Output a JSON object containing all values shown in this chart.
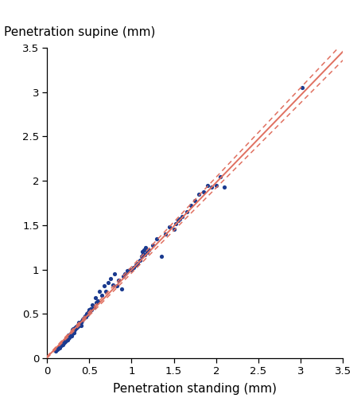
{
  "title": "",
  "xlabel": "Penetration standing (mm)",
  "ylabel": "Penetration supine (mm)",
  "xlim": [
    0,
    3.5
  ],
  "ylim": [
    0,
    3.5
  ],
  "xticks": [
    0,
    0.5,
    1.0,
    1.5,
    2.0,
    2.5,
    3.0,
    3.5
  ],
  "yticks": [
    0,
    0.5,
    1.0,
    1.5,
    2.0,
    2.5,
    3.0,
    3.5
  ],
  "dot_color": "#1a3a8f",
  "line_color": "#e07060",
  "ci_color": "#e07060",
  "regression_slope": 0.985,
  "regression_intercept": 0.01,
  "ci_slope_upper": 1.01,
  "ci_intercept_upper": 0.02,
  "ci_slope_lower": 0.96,
  "ci_intercept_lower": 0.0,
  "scatter_x": [
    0.1,
    0.12,
    0.13,
    0.14,
    0.15,
    0.15,
    0.16,
    0.17,
    0.17,
    0.18,
    0.19,
    0.19,
    0.2,
    0.2,
    0.21,
    0.21,
    0.22,
    0.22,
    0.23,
    0.23,
    0.24,
    0.24,
    0.25,
    0.25,
    0.25,
    0.26,
    0.26,
    0.27,
    0.27,
    0.28,
    0.28,
    0.29,
    0.29,
    0.3,
    0.3,
    0.3,
    0.31,
    0.31,
    0.32,
    0.32,
    0.33,
    0.33,
    0.34,
    0.35,
    0.35,
    0.36,
    0.37,
    0.37,
    0.38,
    0.38,
    0.39,
    0.4,
    0.4,
    0.41,
    0.42,
    0.43,
    0.44,
    0.45,
    0.46,
    0.47,
    0.48,
    0.49,
    0.5,
    0.51,
    0.52,
    0.53,
    0.54,
    0.55,
    0.57,
    0.58,
    0.6,
    0.62,
    0.65,
    0.68,
    0.7,
    0.72,
    0.75,
    0.78,
    0.8,
    0.83,
    0.85,
    0.88,
    0.9,
    0.92,
    0.95,
    0.98,
    1.0,
    1.02,
    1.05,
    1.07,
    1.1,
    1.12,
    1.13,
    1.14,
    1.15,
    1.16,
    1.17,
    1.18,
    1.2,
    1.25,
    1.3,
    1.35,
    1.4,
    1.45,
    1.5,
    1.52,
    1.55,
    1.57,
    1.6,
    1.65,
    1.7,
    1.75,
    1.8,
    1.85,
    1.9,
    1.95,
    2.0,
    2.05,
    2.1,
    3.02
  ],
  "scatter_y": [
    0.08,
    0.1,
    0.11,
    0.13,
    0.14,
    0.12,
    0.15,
    0.16,
    0.14,
    0.16,
    0.18,
    0.15,
    0.19,
    0.17,
    0.2,
    0.18,
    0.21,
    0.19,
    0.22,
    0.2,
    0.23,
    0.21,
    0.24,
    0.26,
    0.22,
    0.25,
    0.23,
    0.27,
    0.25,
    0.26,
    0.28,
    0.28,
    0.25,
    0.3,
    0.28,
    0.32,
    0.3,
    0.33,
    0.31,
    0.29,
    0.32,
    0.34,
    0.35,
    0.34,
    0.36,
    0.36,
    0.36,
    0.38,
    0.38,
    0.4,
    0.39,
    0.4,
    0.37,
    0.42,
    0.44,
    0.45,
    0.46,
    0.48,
    0.47,
    0.5,
    0.49,
    0.52,
    0.55,
    0.53,
    0.56,
    0.55,
    0.6,
    0.57,
    0.68,
    0.63,
    0.65,
    0.75,
    0.71,
    0.82,
    0.75,
    0.85,
    0.9,
    0.83,
    0.95,
    0.82,
    0.88,
    0.78,
    0.92,
    0.95,
    0.99,
    1.0,
    1.0,
    1.02,
    1.05,
    1.07,
    1.1,
    1.15,
    1.2,
    1.18,
    1.22,
    1.17,
    1.25,
    1.19,
    1.22,
    1.27,
    1.35,
    1.15,
    1.4,
    1.48,
    1.45,
    1.52,
    1.55,
    1.57,
    1.6,
    1.65,
    1.72,
    1.78,
    1.85,
    1.88,
    1.95,
    1.93,
    1.95,
    2.05,
    1.93,
    3.05
  ],
  "dot_size": 14,
  "dot_alpha": 1.0,
  "figsize": [
    4.54,
    5.0
  ],
  "dpi": 100
}
